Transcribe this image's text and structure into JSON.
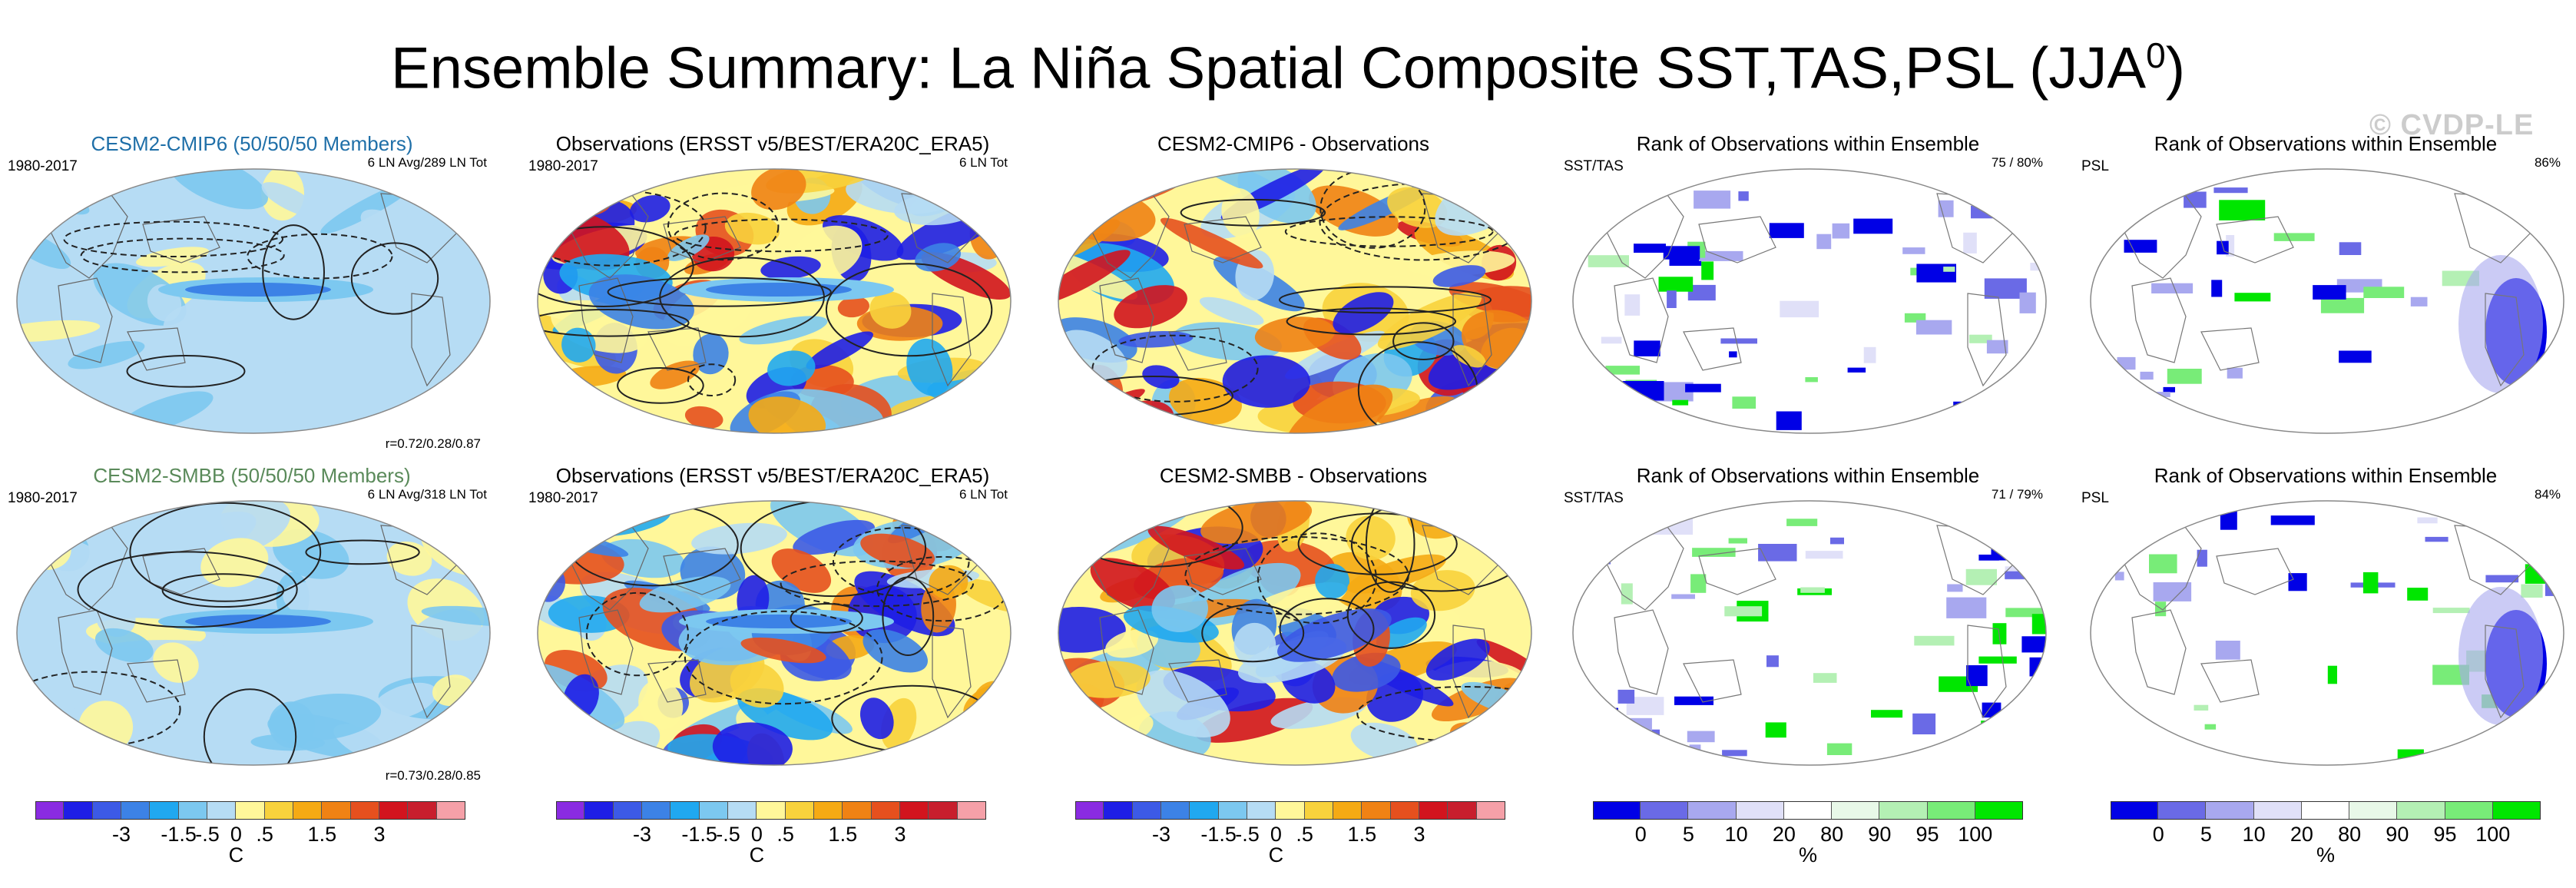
{
  "title": {
    "main": "Ensemble Summary: La Niña Spatial Composite SST,TAS,PSL (JJA",
    "superscript": "0",
    "close": ")"
  },
  "watermark": "© CVDP-LE",
  "panels": [
    {
      "title": "CESM2-CMIP6 (50/50/50 Members)",
      "title_color": "#1f6fa8",
      "top_left": "1980-2017",
      "top_right": "6 LN Avg/289 LN Tot",
      "bottom_right": "r=0.72/0.28/0.87",
      "kind": "anom",
      "variant": "model"
    },
    {
      "title": "Observations (ERSST v5/BEST/ERA20C_ERA5)",
      "title_color": "#000000",
      "top_left": "1980-2017",
      "top_right": "6 LN Tot",
      "bottom_right": "",
      "kind": "anom",
      "variant": "obs"
    },
    {
      "title": "CESM2-CMIP6 - Observations",
      "title_color": "#000000",
      "top_left": "",
      "top_right": "",
      "bottom_right": "",
      "kind": "anom",
      "variant": "diff"
    },
    {
      "title": "Rank of Observations within Ensemble",
      "title_color": "#000000",
      "top_left": "SST/TAS",
      "top_right": "75 /  80%",
      "bottom_right": "",
      "kind": "rank",
      "variant": "sst"
    },
    {
      "title": "Rank of Observations within Ensemble",
      "title_color": "#000000",
      "top_left": "PSL",
      "top_right": "86%",
      "bottom_right": "",
      "kind": "rank",
      "variant": "psl"
    },
    {
      "title": "CESM2-SMBB (50/50/50 Members)",
      "title_color": "#5a8a5a",
      "top_left": "1980-2017",
      "top_right": "6 LN Avg/318 LN Tot",
      "bottom_right": "r=0.73/0.28/0.85",
      "kind": "anom",
      "variant": "model"
    },
    {
      "title": "Observations (ERSST v5/BEST/ERA20C_ERA5)",
      "title_color": "#000000",
      "top_left": "1980-2017",
      "top_right": "6 LN Tot",
      "bottom_right": "",
      "kind": "anom",
      "variant": "obs"
    },
    {
      "title": "CESM2-SMBB - Observations",
      "title_color": "#000000",
      "top_left": "",
      "top_right": "",
      "bottom_right": "",
      "kind": "anom",
      "variant": "diff"
    },
    {
      "title": "Rank of Observations within Ensemble",
      "title_color": "#000000",
      "top_left": "SST/TAS",
      "top_right": "71 /  79%",
      "bottom_right": "",
      "kind": "rank",
      "variant": "sst"
    },
    {
      "title": "Rank of Observations within Ensemble",
      "title_color": "#000000",
      "top_left": "PSL",
      "top_right": "84%",
      "bottom_right": "",
      "kind": "rank",
      "variant": "psl"
    }
  ],
  "colorbars": {
    "anom": {
      "colors": [
        "#8a2be2",
        "#1e1ee6",
        "#3c5ae6",
        "#3c82e6",
        "#20a8f0",
        "#7cc8f0",
        "#b6dcf4",
        "#fff79a",
        "#f8d23c",
        "#f5aa14",
        "#f08214",
        "#e6501e",
        "#d2141e",
        "#c81e2d",
        "#f5a0a8"
      ],
      "ticks": [
        "-3",
        "-1.5",
        "-.5",
        "0",
        ".5",
        "1.5",
        "3"
      ],
      "unit": "C"
    },
    "rank": {
      "colors": [
        "#0000e6",
        "#6a6ae6",
        "#a8a8ef",
        "#e0e0f8",
        "#ffffff",
        "#e8f8e8",
        "#b4f0b4",
        "#78ec78",
        "#00e600"
      ],
      "ticks": [
        "0",
        "5",
        "10",
        "20",
        "80",
        "90",
        "95",
        "100"
      ],
      "unit": "%"
    }
  },
  "chart_data": [
    {
      "type": "heatmap",
      "title": "CESM2-CMIP6 (50/50/50 Members)",
      "period": "1980-2017",
      "info": "6 LN Avg/289 LN Tot",
      "stats": "r=0.72/0.28/0.87",
      "units": "C"
    },
    {
      "type": "heatmap",
      "title": "Observations (ERSST v5/BEST/ERA20C_ERA5)",
      "period": "1980-2017",
      "info": "6 LN Tot",
      "units": "C"
    },
    {
      "type": "heatmap",
      "title": "CESM2-CMIP6 - Observations",
      "units": "C"
    },
    {
      "type": "heatmap",
      "title": "Rank of Observations within Ensemble",
      "variable": "SST/TAS",
      "info": "75 /  80%",
      "units": "%"
    },
    {
      "type": "heatmap",
      "title": "Rank of Observations within Ensemble",
      "variable": "PSL",
      "info": "86%",
      "units": "%"
    },
    {
      "type": "heatmap",
      "title": "CESM2-SMBB (50/50/50 Members)",
      "period": "1980-2017",
      "info": "6 LN Avg/318 LN Tot",
      "stats": "r=0.73/0.28/0.85",
      "units": "C"
    },
    {
      "type": "heatmap",
      "title": "Observations (ERSST v5/BEST/ERA20C_ERA5)",
      "period": "1980-2017",
      "info": "6 LN Tot",
      "units": "C"
    },
    {
      "type": "heatmap",
      "title": "CESM2-SMBB - Observations",
      "units": "C"
    },
    {
      "type": "heatmap",
      "title": "Rank of Observations within Ensemble",
      "variable": "SST/TAS",
      "info": "71 /  79%",
      "units": "%"
    },
    {
      "type": "heatmap",
      "title": "Rank of Observations within Ensemble",
      "variable": "PSL",
      "info": "84%",
      "units": "%"
    }
  ]
}
